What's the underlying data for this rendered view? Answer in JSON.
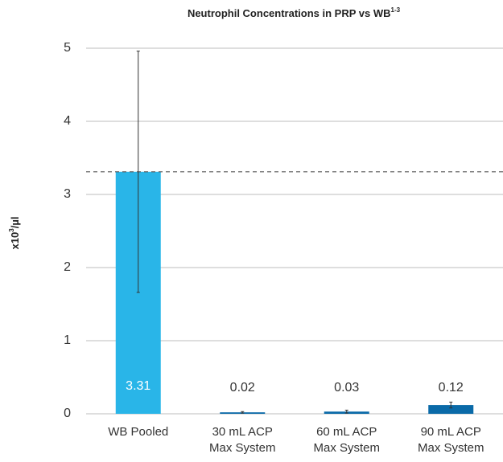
{
  "chart_data": {
    "type": "bar",
    "title": "Neutrophil Concentrations in PRP vs WB",
    "title_sup": "1-3",
    "y_label": "x10",
    "y_label_sup": "3",
    "y_label_unit": "/µl",
    "categories": [
      [
        "WB Pooled"
      ],
      [
        "30 mL ACP",
        "Max System"
      ],
      [
        "60 mL ACP",
        "Max System"
      ],
      [
        "90 mL ACP",
        "Max System"
      ]
    ],
    "values": [
      3.31,
      0.02,
      0.03,
      0.12
    ],
    "errors": [
      1.65,
      0.01,
      0.02,
      0.04
    ],
    "colors": [
      "#29b5e8",
      "#0a6aa8",
      "#0a6aa8",
      "#0a6aa8"
    ],
    "ylim": [
      0,
      5
    ],
    "yticks": [
      0,
      1,
      2,
      3,
      4,
      5
    ],
    "grid": true
  }
}
